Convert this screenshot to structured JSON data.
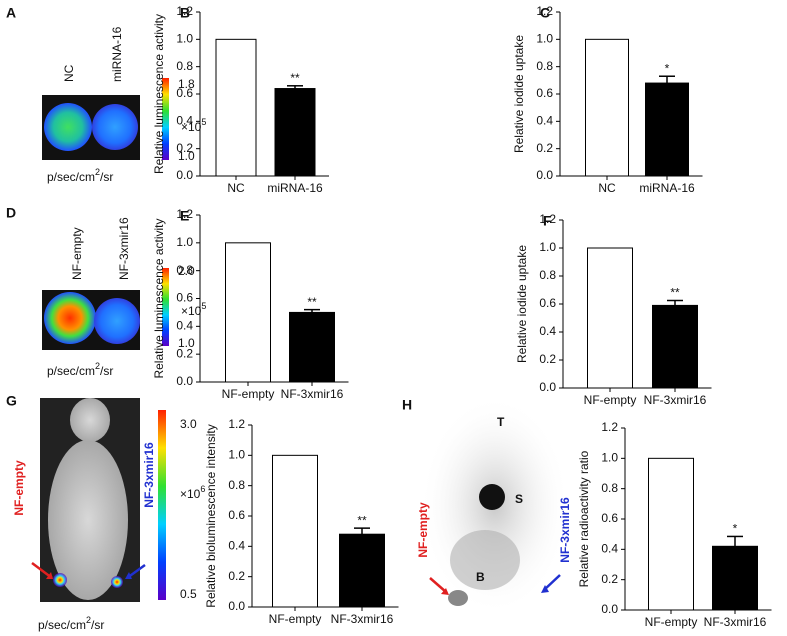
{
  "chart_data": [
    {
      "type": "bar",
      "panel": "B",
      "y_label": "Relative luminescence activity",
      "categories": [
        "NC",
        "miRNA-16"
      ],
      "values": [
        1.0,
        0.64
      ],
      "errors": [
        null,
        0.02
      ],
      "significance": [
        null,
        "**"
      ],
      "colors": [
        "#ffffff",
        "#000000"
      ],
      "ylim": [
        0,
        1.2
      ],
      "yticks": [
        {
          "value": 0,
          "label": "0.0"
        },
        {
          "value": 0.2,
          "label": "0.2"
        },
        {
          "value": 0.4,
          "label": "0.4"
        },
        {
          "value": 0.6,
          "label": "0.6"
        },
        {
          "value": 0.8,
          "label": "0.8"
        },
        {
          "value": 1,
          "label": "1.0"
        },
        {
          "value": 1.2,
          "label": "1.2"
        }
      ]
    },
    {
      "type": "bar",
      "panel": "C",
      "y_label": "Relative iodide uptake",
      "categories": [
        "NC",
        "miRNA-16"
      ],
      "values": [
        1.0,
        0.68
      ],
      "errors": [
        null,
        0.05
      ],
      "significance": [
        null,
        "*"
      ],
      "colors": [
        "#ffffff",
        "#000000"
      ],
      "ylim": [
        0,
        1.2
      ],
      "yticks": [
        {
          "value": 0,
          "label": "0.0"
        },
        {
          "value": 0.2,
          "label": "0.2"
        },
        {
          "value": 0.4,
          "label": "0.4"
        },
        {
          "value": 0.6,
          "label": "0.6"
        },
        {
          "value": 0.8,
          "label": "0.8"
        },
        {
          "value": 1,
          "label": "1.0"
        },
        {
          "value": 1.2,
          "label": "1.2"
        }
      ]
    },
    {
      "type": "bar",
      "panel": "E",
      "y_label": "Relative luminescence activity",
      "categories": [
        "NF-empty",
        "NF-3xmir16"
      ],
      "values": [
        1.0,
        0.5
      ],
      "errors": [
        null,
        0.02
      ],
      "significance": [
        null,
        "**"
      ],
      "colors": [
        "#ffffff",
        "#000000"
      ],
      "ylim": [
        0,
        1.2
      ],
      "yticks": [
        {
          "value": 0,
          "label": "0.0"
        },
        {
          "value": 0.2,
          "label": "0.2"
        },
        {
          "value": 0.4,
          "label": "0.4"
        },
        {
          "value": 0.6,
          "label": "0.6"
        },
        {
          "value": 0.8,
          "label": "0.8"
        },
        {
          "value": 1,
          "label": "1.0"
        },
        {
          "value": 1.2,
          "label": "1.2"
        }
      ]
    },
    {
      "type": "bar",
      "panel": "F",
      "y_label": "Relative iodide uptake",
      "categories": [
        "NF-empty",
        "NF-3xmir16"
      ],
      "values": [
        1.0,
        0.59
      ],
      "errors": [
        null,
        0.035
      ],
      "significance": [
        null,
        "**"
      ],
      "colors": [
        "#ffffff",
        "#000000"
      ],
      "ylim": [
        0,
        1.2
      ],
      "yticks": [
        {
          "value": 0,
          "label": "0.0"
        },
        {
          "value": 0.2,
          "label": "0.2"
        },
        {
          "value": 0.4,
          "label": "0.4"
        },
        {
          "value": 0.6,
          "label": "0.6"
        },
        {
          "value": 0.8,
          "label": "0.8"
        },
        {
          "value": 1,
          "label": "1.0"
        },
        {
          "value": 1.2,
          "label": "1.2"
        }
      ]
    },
    {
      "type": "bar",
      "y_label": "Relative bioluminescence intensity",
      "categories": [
        "NF-empty",
        "NF-3xmir16"
      ],
      "values": [
        1.0,
        0.48
      ],
      "errors": [
        null,
        0.04
      ],
      "significance": [
        null,
        "**"
      ],
      "colors": [
        "#ffffff",
        "#000000"
      ],
      "ylim": [
        0,
        1.2
      ],
      "yticks": [
        {
          "value": 0,
          "label": "0.0"
        },
        {
          "value": 0.2,
          "label": "0.2"
        },
        {
          "value": 0.4,
          "label": "0.4"
        },
        {
          "value": 0.6,
          "label": "0.6"
        },
        {
          "value": 0.8,
          "label": "0.8"
        },
        {
          "value": 1,
          "label": "1.0"
        },
        {
          "value": 1.2,
          "label": "1.2"
        }
      ]
    },
    {
      "type": "bar",
      "y_label": "Relative  radioactivity ratio",
      "categories": [
        "NF-empty",
        "NF-3xmir16"
      ],
      "values": [
        1.0,
        0.42
      ],
      "errors": [
        null,
        0.065
      ],
      "significance": [
        null,
        "*"
      ],
      "colors": [
        "#ffffff",
        "#000000"
      ],
      "ylim": [
        0,
        1.2
      ],
      "yticks": [
        {
          "value": 0,
          "label": "0.0"
        },
        {
          "value": 0.2,
          "label": "0.2"
        },
        {
          "value": 0.4,
          "label": "0.4"
        },
        {
          "value": 0.6,
          "label": "0.6"
        },
        {
          "value": 0.8,
          "label": "0.8"
        },
        {
          "value": 1,
          "label": "1.0"
        },
        {
          "value": 1.2,
          "label": "1.2"
        }
      ]
    }
  ],
  "images": [
    {
      "panel": "A",
      "labels": [
        "NC",
        "miRNA-16"
      ],
      "scale_max": "1.8",
      "scale_min": "1.0",
      "multiplier": [
        "×10",
        "5"
      ],
      "unit": [
        "p/sec/cm",
        "2",
        "/sr"
      ]
    },
    {
      "panel": "D",
      "labels": [
        "NF-empty",
        "NF-3xmir16"
      ],
      "scale_max": "2.0",
      "scale_min": "1.0",
      "multiplier": [
        "×10",
        "5"
      ],
      "unit": [
        "p/sec/cm",
        "2",
        "/sr"
      ]
    },
    {
      "panel": "G",
      "labels": [
        "NF-empty",
        "NF-3xmir16"
      ],
      "scale_max": "3.0",
      "scale_min": "0.5",
      "multiplier": [
        "×10",
        "6"
      ],
      "unit": [
        "p/sec/cm",
        "2",
        "/sr"
      ]
    },
    {
      "panel": "H",
      "labels": [
        "NF-empty",
        "NF-3xmir16"
      ],
      "markers": [
        "T",
        "S",
        "B"
      ]
    }
  ]
}
